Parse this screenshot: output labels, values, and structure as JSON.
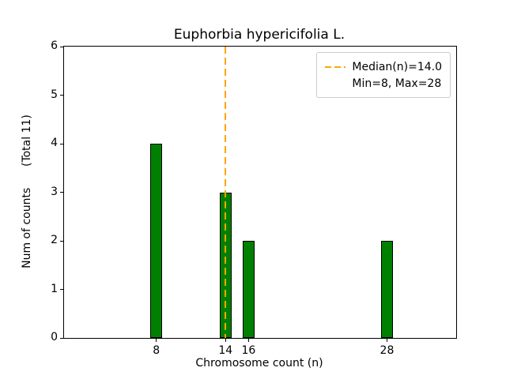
{
  "chart_data": {
    "type": "bar",
    "title": "Euphorbia hypericifolia L.",
    "xlabel": "Chromosome count (n)",
    "ylabel": "Num of counts      (Total 11)",
    "x": [
      8,
      14,
      16,
      28
    ],
    "values": [
      4,
      3,
      2,
      2
    ],
    "bar_width": 1,
    "bar_color": "#008000",
    "bar_edge_color": "#000000",
    "xlim": [
      0,
      34
    ],
    "ylim": [
      0,
      6
    ],
    "xticks": [
      8,
      14,
      16,
      28
    ],
    "yticks": [
      0,
      1,
      2,
      3,
      4,
      5,
      6
    ],
    "grid": false,
    "total_counts": 11,
    "median_line": {
      "x": 14.0,
      "color": "#FFA500",
      "style": "dashed"
    },
    "legend": {
      "position": "upper-right",
      "entries": [
        {
          "label": "Median(n)=14.0",
          "handle": "dashed-line",
          "color": "#FFA500"
        },
        {
          "label": "Min=8, Max=28",
          "handle": "none",
          "color": ""
        }
      ]
    }
  }
}
